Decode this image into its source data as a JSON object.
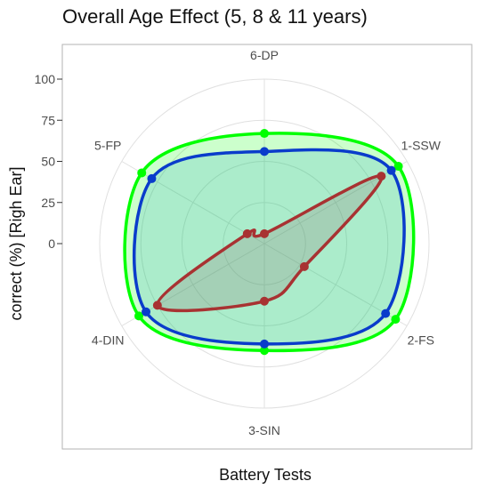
{
  "chart_data": {
    "type": "radar",
    "title": "Overall Age Effect (5, 8 & 11 years)",
    "xlabel": "Battery Tests",
    "ylabel": "correct (%) [Righ Ear]",
    "categories": [
      "1-SSW",
      "2-FS",
      "3-SIN",
      "4-DIN",
      "5-FP",
      "6-DP"
    ],
    "yticks": [
      0,
      25,
      50,
      75,
      100
    ],
    "ylim": [
      0,
      100
    ],
    "grid": true,
    "legend": "none",
    "series": [
      {
        "values": [
          94,
          92,
          65,
          88,
          86,
          67
        ],
        "color": "#00ff00",
        "fill": "#00ff00"
      },
      {
        "values": [
          89,
          85,
          61,
          83,
          79,
          56
        ],
        "color": "#0a3ccb",
        "fill": "#28a0c8"
      },
      {
        "values": [
          82,
          28,
          35,
          75,
          12,
          6
        ],
        "color": "#a83232",
        "fill": "#8c6464"
      }
    ],
    "colors": {
      "panel_border": "#b3b3b3",
      "grid": "#e0e0e0"
    }
  }
}
